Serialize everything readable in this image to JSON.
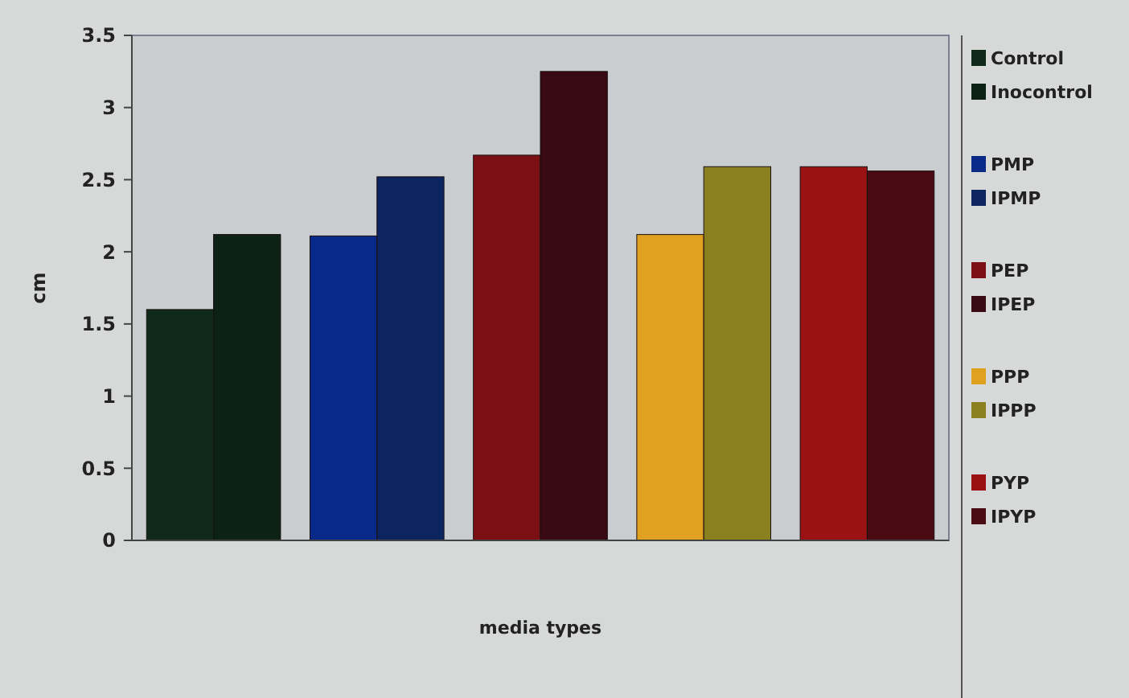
{
  "chart_data": {
    "type": "bar",
    "xlabel": "media types",
    "ylabel": "cm",
    "categories": [
      null,
      null,
      null,
      null,
      null
    ],
    "series": [
      {
        "name": "Control",
        "color": "#0f2a18",
        "values": [
          1.6,
          null,
          null,
          null,
          null
        ]
      },
      {
        "name": "Inocontrol",
        "color": "#0c2214",
        "values": [
          2.12,
          null,
          null,
          null,
          null
        ]
      },
      {
        "name": "PMP",
        "color": "#0a2a8a",
        "values": [
          null,
          2.11,
          null,
          null,
          null
        ]
      },
      {
        "name": "IPMP",
        "color": "#0c2460",
        "values": [
          null,
          2.52,
          null,
          null,
          null
        ]
      },
      {
        "name": "PEP",
        "color": "#7a0f14",
        "values": [
          null,
          null,
          2.67,
          null,
          null
        ]
      },
      {
        "name": "IPEP",
        "color": "#3a0a12",
        "values": [
          null,
          null,
          3.25,
          null,
          null
        ]
      },
      {
        "name": "PPP",
        "color": "#e0a020",
        "values": [
          null,
          null,
          null,
          2.12,
          null
        ]
      },
      {
        "name": "IPPP",
        "color": "#8a8020",
        "values": [
          null,
          null,
          null,
          2.59,
          null
        ]
      },
      {
        "name": "PYP",
        "color": "#9a1214",
        "values": [
          null,
          null,
          null,
          null,
          2.59
        ]
      },
      {
        "name": "IPYP",
        "color": "#4a0c12",
        "values": [
          null,
          null,
          null,
          null,
          2.56
        ]
      }
    ],
    "ylim": [
      0,
      3.5
    ],
    "yticks": [
      0,
      0.5,
      1,
      1.5,
      2,
      2.5,
      3,
      3.5
    ],
    "grid": false,
    "legend": "right",
    "tick_labels": "y"
  }
}
